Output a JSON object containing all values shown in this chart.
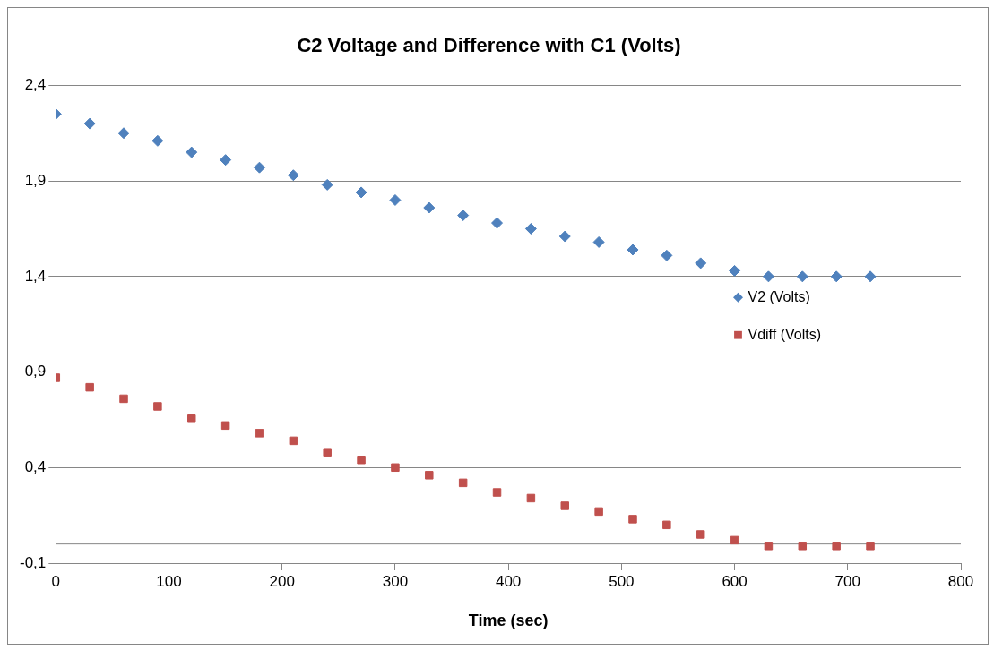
{
  "chart_data": {
    "type": "scatter",
    "title": "C2 Voltage and Difference with C1 (Volts)",
    "xlabel": "Time (sec)",
    "x": [
      0,
      30,
      60,
      90,
      120,
      150,
      180,
      210,
      240,
      270,
      300,
      330,
      360,
      390,
      420,
      450,
      480,
      510,
      540,
      570,
      600,
      630,
      660,
      690,
      720
    ],
    "series": [
      {
        "name": "V2 (Volts)",
        "color": "#4f81bd",
        "marker": "diamond",
        "values": [
          2.25,
          2.2,
          2.15,
          2.11,
          2.05,
          2.01,
          1.97,
          1.93,
          1.88,
          1.84,
          1.8,
          1.76,
          1.72,
          1.68,
          1.65,
          1.61,
          1.58,
          1.54,
          1.51,
          1.47,
          1.43,
          1.4,
          1.4,
          1.4,
          1.4
        ]
      },
      {
        "name": "Vdiff (Volts)",
        "color": "#c0504d",
        "marker": "square",
        "values": [
          0.87,
          0.82,
          0.76,
          0.72,
          0.66,
          0.62,
          0.58,
          0.54,
          0.48,
          0.44,
          0.4,
          0.36,
          0.32,
          0.27,
          0.24,
          0.2,
          0.17,
          0.13,
          0.1,
          0.05,
          0.02,
          -0.01,
          -0.01,
          -0.01,
          -0.01
        ]
      }
    ],
    "xlim": [
      0,
      800
    ],
    "xticks": [
      0,
      100,
      200,
      300,
      400,
      500,
      600,
      700,
      800
    ],
    "ylim": [
      -0.1,
      2.4
    ],
    "yticks": [
      {
        "value": -0.1,
        "label": "-0,1"
      },
      {
        "value": 0.4,
        "label": "0,4"
      },
      {
        "value": 0.9,
        "label": "0,9"
      },
      {
        "value": 1.4,
        "label": "1,4"
      },
      {
        "value": 1.9,
        "label": "1,9"
      },
      {
        "value": 2.4,
        "label": "2,4"
      }
    ],
    "ref_lines": [
      {
        "axis": "y",
        "value": 0,
        "color": "#868686"
      }
    ],
    "grid": "y",
    "legend": "right"
  }
}
